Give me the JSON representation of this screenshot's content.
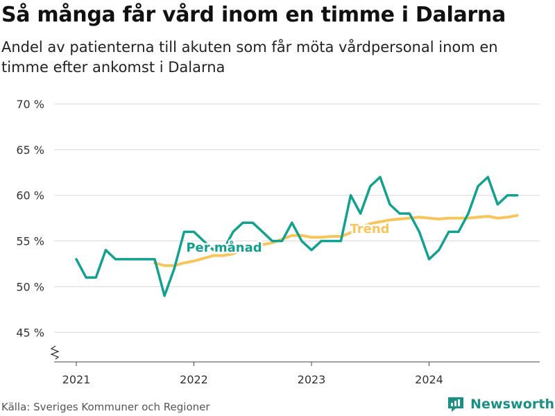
{
  "title": "Så många får vård inom en timme i Dalarna",
  "subtitle": "Andel av patienterna till akuten som får möta vårdpersonal inom en timme efter ankomst i Dalarna",
  "source": "Källa: Sveriges Kommuner och Regioner",
  "brand": "Newsworthy",
  "colors": {
    "monthly": "#12a08f",
    "trend": "#f7c55a",
    "grid": "#d9d9d9",
    "brand": "#1a8f86"
  },
  "chart_data": {
    "type": "line",
    "ylim": [
      42,
      70
    ],
    "yticks": [
      45,
      50,
      55,
      60,
      65,
      70
    ],
    "ytick_labels": [
      "45 %",
      "50 %",
      "55 %",
      "60 %",
      "65 %",
      "70 %"
    ],
    "xticks": [
      "2021-01",
      "2022-01",
      "2023-01",
      "2024-01"
    ],
    "xtick_labels": [
      "2021",
      "2022",
      "2023",
      "2024"
    ],
    "grid": true,
    "series": [
      {
        "name": "Per månad",
        "label": "Per månad",
        "x": [
          "2021-01",
          "2021-02",
          "2021-03",
          "2021-04",
          "2021-05",
          "2021-06",
          "2021-07",
          "2021-08",
          "2021-09",
          "2021-10",
          "2021-11",
          "2021-12",
          "2022-01",
          "2022-02",
          "2022-03",
          "2022-04",
          "2022-05",
          "2022-06",
          "2022-07",
          "2022-08",
          "2022-09",
          "2022-10",
          "2022-11",
          "2022-12",
          "2023-01",
          "2023-02",
          "2023-03",
          "2023-04",
          "2023-05",
          "2023-06",
          "2023-07",
          "2023-08",
          "2023-09",
          "2023-10",
          "2023-11",
          "2023-12",
          "2024-01",
          "2024-02",
          "2024-03",
          "2024-04",
          "2024-05",
          "2024-06",
          "2024-07",
          "2024-08",
          "2024-09",
          "2024-10"
        ],
        "values": [
          53,
          51,
          51,
          54,
          53,
          53,
          53,
          53,
          53,
          49,
          52,
          56,
          56,
          55,
          54,
          54,
          56,
          57,
          57,
          56,
          55,
          55,
          57,
          55,
          54,
          55,
          55,
          55,
          60,
          58,
          61,
          62,
          59,
          58,
          58,
          56,
          53,
          54,
          56,
          56,
          58,
          61,
          62,
          59,
          60,
          60
        ]
      },
      {
        "name": "Trend",
        "label": "Trend",
        "x": [
          "2021-09",
          "2021-10",
          "2021-11",
          "2021-12",
          "2022-01",
          "2022-02",
          "2022-03",
          "2022-04",
          "2022-05",
          "2022-06",
          "2022-07",
          "2022-08",
          "2022-09",
          "2022-10",
          "2022-11",
          "2022-12",
          "2023-01",
          "2023-02",
          "2023-03",
          "2023-04",
          "2023-05",
          "2023-06",
          "2023-07",
          "2023-08",
          "2023-09",
          "2023-10",
          "2023-11",
          "2023-12",
          "2024-01",
          "2024-02",
          "2024-03",
          "2024-04",
          "2024-05",
          "2024-06",
          "2024-07",
          "2024-08",
          "2024-09",
          "2024-10"
        ],
        "values": [
          52.6,
          52.3,
          52.3,
          52.6,
          52.8,
          53.1,
          53.4,
          53.4,
          53.6,
          54.0,
          54.4,
          54.6,
          54.8,
          55.2,
          55.6,
          55.6,
          55.4,
          55.4,
          55.5,
          55.5,
          55.9,
          56.4,
          56.9,
          57.1,
          57.3,
          57.4,
          57.5,
          57.6,
          57.5,
          57.4,
          57.5,
          57.5,
          57.5,
          57.6,
          57.7,
          57.5,
          57.6,
          57.8
        ]
      }
    ]
  }
}
